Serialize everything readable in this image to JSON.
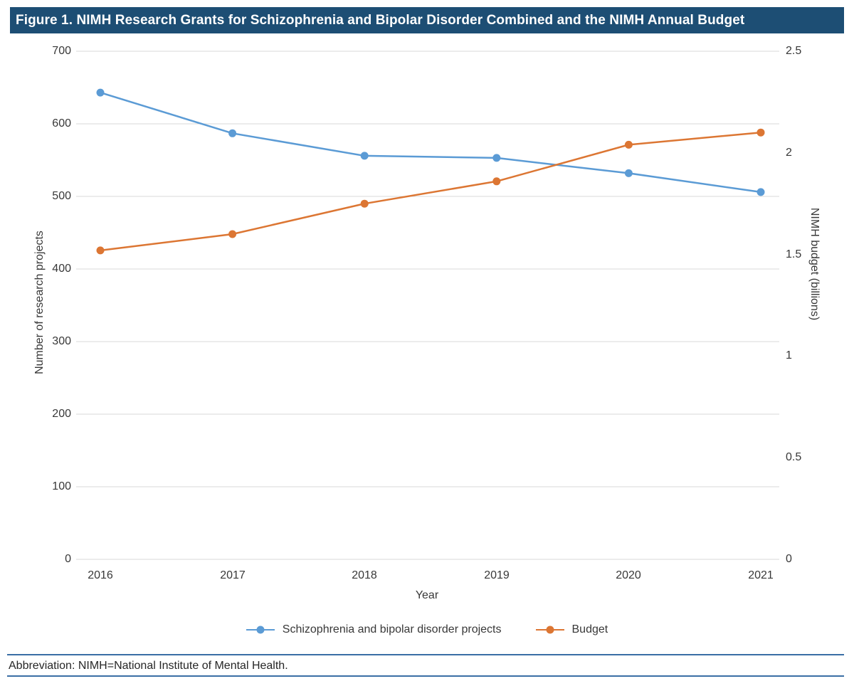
{
  "figure": {
    "title": "Figure 1. NIMH Research Grants for Schizophrenia and Bipolar Disorder Combined and the NIMH Annual Budget",
    "footnote": "Abbreviation: NIMH=National Institute of Mental Health."
  },
  "colors": {
    "title_bar_background": "#1D4E74",
    "title_text": "#FFFFFF",
    "projects_series": "#5B9BD5",
    "budget_series": "#DC7633",
    "gridline": "#D9D9D9",
    "axis_text": "#383838",
    "divider_rule": "#3A6EA5"
  },
  "chart_data": {
    "type": "line",
    "title": "Figure 1. NIMH Research Grants for Schizophrenia and Bipolar Disorder Combined and the NIMH Annual Budget",
    "x": [
      2016,
      2017,
      2018,
      2019,
      2020,
      2021
    ],
    "xlabel": "Year",
    "grid": true,
    "legend_position": "bottom",
    "left_axis": {
      "label": "Number of research projects",
      "min": 0,
      "max": 700,
      "ticks": [
        0,
        100,
        200,
        300,
        400,
        500,
        600,
        700
      ],
      "tick_labels": [
        "0",
        "100",
        "200",
        "300",
        "400",
        "500",
        "600",
        "700"
      ]
    },
    "right_axis": {
      "label": "NIMH budget (billions)",
      "min": 0,
      "max": 2.5,
      "ticks": [
        0,
        0.5,
        1,
        1.5,
        2,
        2.5
      ],
      "tick_labels": [
        "0",
        "0.5",
        "1",
        "1.5",
        "2",
        "2.5"
      ]
    },
    "series": [
      {
        "name": "Schizophrenia and bipolar disorder projects",
        "axis": "left",
        "color": "#5B9BD5",
        "values": [
          643,
          587,
          556,
          553,
          532,
          506
        ]
      },
      {
        "name": "Budget",
        "axis": "right",
        "color": "#DC7633",
        "values": [
          1.52,
          1.6,
          1.75,
          1.86,
          2.04,
          2.1
        ]
      }
    ]
  }
}
